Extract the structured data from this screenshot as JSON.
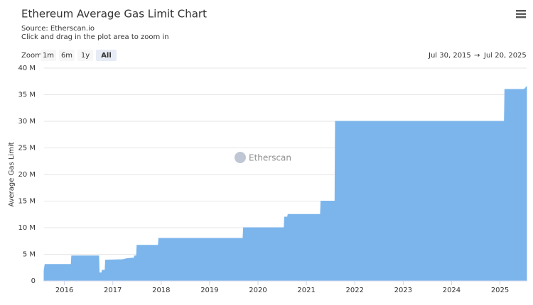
{
  "chart_data": {
    "type": "area",
    "title": "Ethereum Average Gas Limit Chart",
    "subtitle": [
      "Source: Etherscan.io",
      "Click and drag in the plot area to zoom in"
    ],
    "zoom_label": "Zoom",
    "zoom_buttons": [
      "1m",
      "6m",
      "1y",
      "All"
    ],
    "selected_zoom": 3,
    "range_from": "Jul 30, 2015",
    "range_arrow": "→",
    "range_to": "Jul 20, 2025",
    "watermark": "Etherscan",
    "y_label": "Average Gas Limit",
    "step": false,
    "grid": true,
    "x": [
      2015.58,
      2015.6,
      2016.14,
      2016.15,
      2016.71,
      2016.72,
      2016.77,
      2016.78,
      2016.84,
      2016.85,
      2017.2,
      2017.3,
      2017.44,
      2017.45,
      2017.49,
      2017.5,
      2017.94,
      2017.95,
      2019.69,
      2019.7,
      2020.54,
      2020.55,
      2020.61,
      2020.62,
      2021.29,
      2021.3,
      2021.59,
      2021.6,
      2025.09,
      2025.1,
      2025.5,
      2025.55
    ],
    "series": [
      {
        "name": "Average Gas Limit",
        "color": "#7cb5ec",
        "values": [
          2000000,
          3100000,
          3100000,
          4700000,
          4700000,
          1500000,
          1500000,
          2000000,
          2000000,
          3900000,
          4000000,
          4200000,
          4300000,
          4700000,
          4700000,
          6700000,
          6700000,
          8000000,
          8000000,
          10000000,
          10000000,
          12000000,
          12000000,
          12500000,
          12500000,
          15000000,
          15000000,
          30000000,
          30000000,
          36000000,
          36000000,
          36500000
        ]
      }
    ],
    "xlim": [
      2015.58,
      2025.55
    ],
    "xticks": [
      2016,
      2017,
      2018,
      2019,
      2020,
      2021,
      2022,
      2023,
      2024,
      2025
    ],
    "ylim": [
      0,
      40000000
    ],
    "yticks": [
      0,
      {
        "value": 5000000,
        "label": "5 M"
      },
      {
        "value": 10000000,
        "label": "10 M"
      },
      {
        "value": 15000000,
        "label": "15 M"
      },
      {
        "value": 20000000,
        "label": "20 M"
      },
      {
        "value": 25000000,
        "label": "25 M"
      },
      {
        "value": 30000000,
        "label": "30 M"
      },
      {
        "value": 35000000,
        "label": "35 M"
      },
      {
        "value": 40000000,
        "label": "40 M"
      }
    ]
  }
}
